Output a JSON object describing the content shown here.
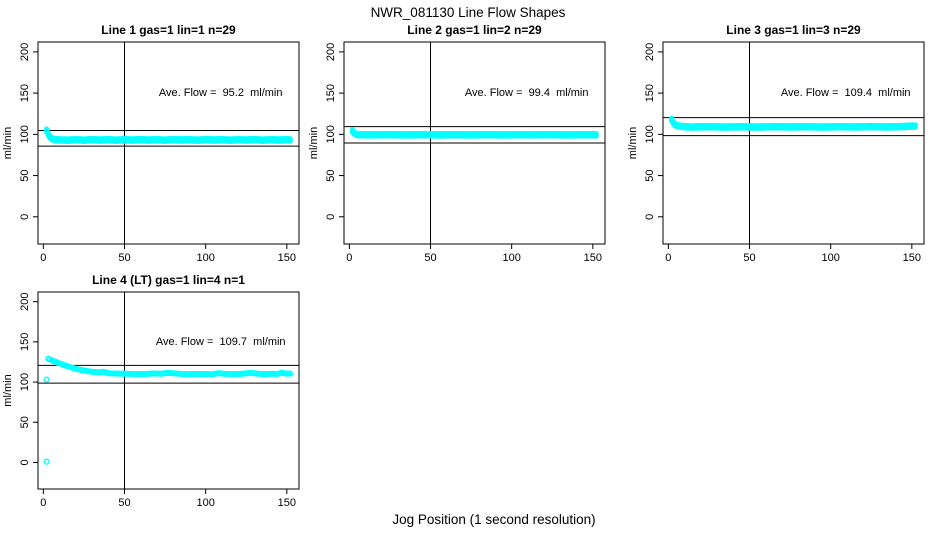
{
  "figure": {
    "title": "NWR_081130  Line Flow Shapes",
    "xlabel": "Jog Position (1 second resolution)",
    "background_color": "#ffffff",
    "axis_color": "#000000",
    "point_color": "#00FFFF"
  },
  "chart_data": {
    "type": "scatter",
    "title": "NWR_081130  Line Flow Shapes",
    "xlabel": "Jog Position (1 second resolution)",
    "ylabel": "ml/min",
    "legend": "none",
    "grid": false,
    "xlim": [
      -3.3,
      157.5
    ],
    "ylim": [
      -33,
      212
    ],
    "x_ticks": [
      0,
      50,
      100,
      150
    ],
    "y_ticks": [
      0,
      50,
      100,
      150,
      200
    ],
    "vline_x": 50,
    "panels": [
      {
        "title": "Line 1 gas=1 lin=1 n=29",
        "annotation": "Ave. Flow =  95.2  ml/min",
        "ave_flow": 95.2,
        "n": 29,
        "ref_lines": [
          104.7,
          85.7
        ],
        "band": 3,
        "points": [
          [
            2,
            105
          ],
          [
            2.6,
            102.5
          ],
          [
            3,
            100.5
          ],
          [
            4,
            97
          ],
          [
            5,
            95
          ],
          [
            6,
            94.2
          ],
          [
            8,
            93.5
          ],
          [
            10,
            93.2
          ],
          [
            15,
            93
          ],
          [
            20,
            93.4
          ],
          [
            25,
            93
          ],
          [
            30,
            93.5
          ],
          [
            35,
            93.1
          ],
          [
            40,
            93.4
          ],
          [
            45,
            93
          ],
          [
            50,
            93.4
          ],
          [
            55,
            93.1
          ],
          [
            60,
            93.5
          ],
          [
            65,
            93.1
          ],
          [
            70,
            93.4
          ],
          [
            75,
            93
          ],
          [
            80,
            93.5
          ],
          [
            85,
            93.2
          ],
          [
            90,
            93.4
          ],
          [
            95,
            93
          ],
          [
            100,
            93.5
          ],
          [
            105,
            93.1
          ],
          [
            110,
            93.4
          ],
          [
            115,
            93
          ],
          [
            120,
            93.4
          ],
          [
            125,
            93.1
          ],
          [
            130,
            93.5
          ],
          [
            135,
            93
          ],
          [
            140,
            93.4
          ],
          [
            145,
            93.1
          ],
          [
            150,
            93.4
          ],
          [
            152,
            93.2
          ]
        ],
        "outliers": []
      },
      {
        "title": "Line 2 gas=1 lin=2 n=29",
        "annotation": "Ave. Flow =  99.4  ml/min",
        "ave_flow": 99.4,
        "n": 29,
        "ref_lines": [
          109.3,
          89.5
        ],
        "band": 3,
        "points": [
          [
            2,
            104
          ],
          [
            3,
            101.5
          ],
          [
            4,
            100.3
          ],
          [
            5,
            99.8
          ],
          [
            8,
            99.5
          ],
          [
            15,
            99.4
          ],
          [
            25,
            99.6
          ],
          [
            35,
            99.3
          ],
          [
            45,
            99.6
          ],
          [
            55,
            99.3
          ],
          [
            65,
            99.5
          ],
          [
            75,
            99.3
          ],
          [
            85,
            99.6
          ],
          [
            95,
            99.3
          ],
          [
            105,
            99.5
          ],
          [
            115,
            99.4
          ],
          [
            125,
            99.6
          ],
          [
            135,
            99.3
          ],
          [
            145,
            99.5
          ],
          [
            152,
            99.4
          ]
        ],
        "outliers": []
      },
      {
        "title": "Line 3 gas=1 lin=3 n=29",
        "annotation": "Ave. Flow =  109.4  ml/min",
        "ave_flow": 109.4,
        "n": 29,
        "ref_lines": [
          120.3,
          98.5
        ],
        "band": 3,
        "points": [
          [
            2,
            118
          ],
          [
            3,
            114.5
          ],
          [
            4,
            112
          ],
          [
            5,
            110.8
          ],
          [
            7,
            109.8
          ],
          [
            10,
            109.2
          ],
          [
            15,
            108.9
          ],
          [
            25,
            109.3
          ],
          [
            35,
            108.9
          ],
          [
            45,
            109.2
          ],
          [
            55,
            108.9
          ],
          [
            65,
            109.3
          ],
          [
            75,
            109
          ],
          [
            85,
            109.3
          ],
          [
            95,
            108.9
          ],
          [
            105,
            109.2
          ],
          [
            115,
            109
          ],
          [
            125,
            109.4
          ],
          [
            135,
            109
          ],
          [
            145,
            109.5
          ],
          [
            150,
            110
          ],
          [
            152,
            110
          ]
        ],
        "outliers": []
      },
      {
        "title": "Line 4 (LT) gas=1 lin=4 n=1",
        "annotation": "Ave. Flow =  109.7  ml/min",
        "ave_flow": 109.7,
        "n": 1,
        "ref_lines": [
          120.7,
          98.7
        ],
        "band": 1,
        "points": [
          [
            3,
            129
          ],
          [
            4,
            128.2
          ],
          [
            5,
            127.3
          ],
          [
            6,
            126.4
          ],
          [
            7,
            125.6
          ],
          [
            8,
            124.8
          ],
          [
            10,
            123.2
          ],
          [
            12,
            121.7
          ],
          [
            14,
            120.3
          ],
          [
            16,
            118.9
          ],
          [
            18,
            117.7
          ],
          [
            20,
            116.6
          ],
          [
            23,
            115.2
          ],
          [
            26,
            114
          ],
          [
            30,
            112.8
          ],
          [
            34,
            112
          ],
          [
            37,
            112.8
          ],
          [
            40,
            111
          ],
          [
            44,
            110.6
          ],
          [
            48,
            110.4
          ],
          [
            52,
            110.3
          ],
          [
            56,
            110
          ],
          [
            60,
            109.8
          ],
          [
            64,
            110.2
          ],
          [
            68,
            110.6
          ],
          [
            72,
            110.3
          ],
          [
            76,
            111.3
          ],
          [
            80,
            111
          ],
          [
            84,
            110.2
          ],
          [
            88,
            109.8
          ],
          [
            92,
            109.9
          ],
          [
            96,
            110.1
          ],
          [
            100,
            110
          ],
          [
            104,
            109.7
          ],
          [
            108,
            111
          ],
          [
            112,
            110.2
          ],
          [
            116,
            109.9
          ],
          [
            120,
            110
          ],
          [
            124,
            110.6
          ],
          [
            128,
            111.5
          ],
          [
            132,
            110.4
          ],
          [
            136,
            109.9
          ],
          [
            140,
            110.3
          ],
          [
            144,
            110.1
          ],
          [
            147,
            111.5
          ],
          [
            150,
            110.4
          ],
          [
            152,
            110.5
          ]
        ],
        "outliers": [
          [
            2,
            1
          ],
          [
            2,
            103
          ]
        ]
      }
    ]
  }
}
